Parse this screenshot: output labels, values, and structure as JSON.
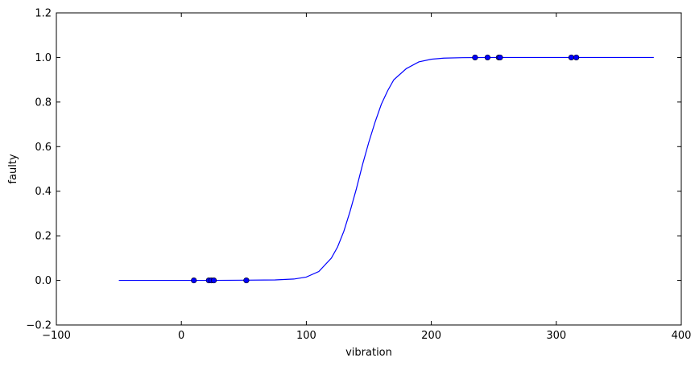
{
  "chart_data": {
    "type": "line",
    "title": "",
    "xlabel": "vibration",
    "ylabel": "faulty",
    "xlim": [
      -100,
      400
    ],
    "ylim": [
      -0.2,
      1.2
    ],
    "xticks": [
      -100,
      0,
      100,
      200,
      300,
      400
    ],
    "yticks": [
      -0.2,
      0.0,
      0.2,
      0.4,
      0.6,
      0.8,
      1.0,
      1.2
    ],
    "xtick_labels": [
      "−100",
      "0",
      "100",
      "200",
      "300",
      "400"
    ],
    "ytick_labels": [
      "−0.2",
      "0.0",
      "0.2",
      "0.4",
      "0.6",
      "0.8",
      "1.0",
      "1.2"
    ],
    "grid": false,
    "legend": "none",
    "line_color": "#0000ff",
    "marker_color": "#0000ff",
    "series": [
      {
        "kind": "line",
        "x": [
          -50,
          -25,
          0,
          25,
          50,
          75,
          90,
          100,
          110,
          120,
          125,
          130,
          135,
          140,
          145,
          150,
          155,
          160,
          165,
          170,
          180,
          190,
          200,
          210,
          225,
          250,
          300,
          350,
          378
        ],
        "y": [
          0.0,
          0.0,
          0.0,
          0.0,
          0.001,
          0.002,
          0.006,
          0.015,
          0.04,
          0.1,
          0.15,
          0.22,
          0.31,
          0.41,
          0.52,
          0.62,
          0.71,
          0.79,
          0.85,
          0.9,
          0.95,
          0.98,
          0.992,
          0.997,
          0.999,
          1.0,
          1.0,
          1.0,
          1.0
        ]
      },
      {
        "kind": "scatter",
        "x": [
          10,
          22,
          24,
          26,
          52,
          235,
          245,
          254,
          255,
          312,
          316
        ],
        "y": [
          0,
          0,
          0,
          0,
          0,
          1,
          1,
          1,
          1,
          1,
          1
        ]
      }
    ]
  }
}
